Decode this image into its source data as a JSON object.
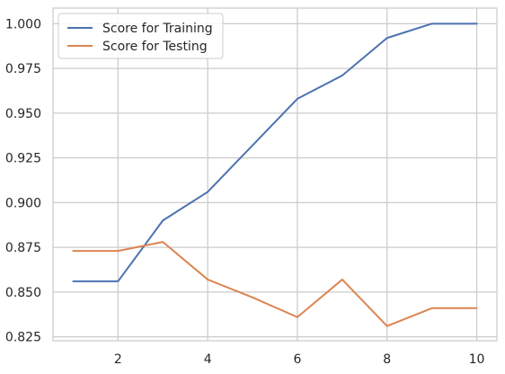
{
  "chart_data": {
    "type": "line",
    "title": "",
    "xlabel": "",
    "ylabel": "",
    "x": [
      1,
      2,
      3,
      4,
      5,
      6,
      7,
      8,
      9,
      10
    ],
    "xlim": [
      0.55,
      10.45
    ],
    "ylim": [
      0.8228,
      1.0087
    ],
    "xticks": [
      2,
      4,
      6,
      8,
      10
    ],
    "xtick_labels": [
      "2",
      "4",
      "6",
      "8",
      "10"
    ],
    "yticks": [
      0.825,
      0.85,
      0.875,
      0.9,
      0.925,
      0.95,
      0.975,
      1.0
    ],
    "ytick_labels": [
      "0.825",
      "0.850",
      "0.875",
      "0.900",
      "0.925",
      "0.950",
      "0.975",
      "1.000"
    ],
    "grid": true,
    "legend_position": "top-left",
    "series": [
      {
        "name": "Score for Training",
        "color": "#4c72b0",
        "values": [
          0.856,
          0.856,
          0.89,
          0.906,
          0.932,
          0.958,
          0.971,
          0.992,
          1.0,
          1.0
        ]
      },
      {
        "name": "Score for Testing",
        "color": "#dd8452",
        "values": [
          0.873,
          0.873,
          0.878,
          0.857,
          0.847,
          0.836,
          0.857,
          0.831,
          0.841,
          0.841
        ]
      }
    ]
  }
}
